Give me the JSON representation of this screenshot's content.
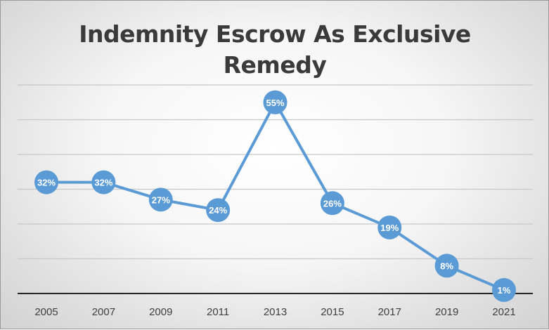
{
  "chart_data": {
    "type": "line",
    "title": "Indemnity Escrow As Exclusive Remedy",
    "categories": [
      "2005",
      "2007",
      "2009",
      "2011",
      "2013",
      "2015",
      "2017",
      "2019",
      "2021"
    ],
    "series": [
      {
        "values": [
          32,
          32,
          27,
          24,
          55,
          26,
          19,
          8,
          1
        ]
      }
    ],
    "data_labels": [
      "32%",
      "32%",
      "27%",
      "24%",
      "55%",
      "26%",
      "19%",
      "8%",
      "1%"
    ],
    "ylim": [
      0,
      60
    ],
    "y_gridline_step": 10,
    "grid": true,
    "legend": "none",
    "xlabel": "",
    "ylabel": "",
    "colors": {
      "line": "#5b9bd5",
      "marker": "#5b9bd5",
      "grid": "#c8c8c8",
      "axis": "#262626"
    }
  }
}
